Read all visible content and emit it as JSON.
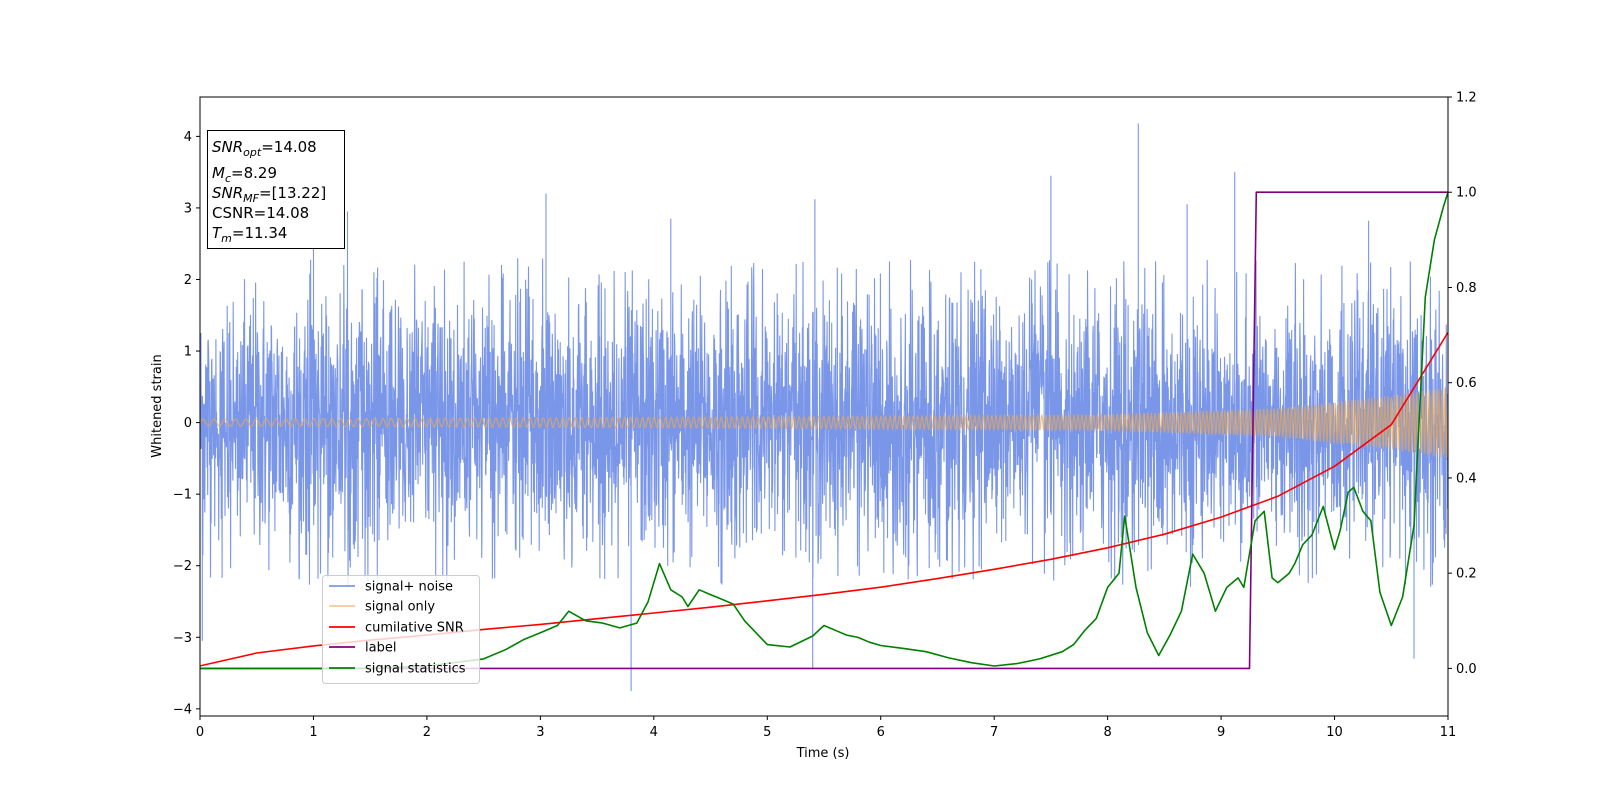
{
  "chart_data": {
    "type": "line",
    "xlabel": "Time (s)",
    "ylabel": "Whitened strain",
    "xlim": [
      0,
      11
    ],
    "ylim_left": [
      -4.1,
      4.55
    ],
    "ylim_right": [
      -0.1,
      1.2
    ],
    "x_ticks": [
      "0",
      "1",
      "2",
      "3",
      "4",
      "5",
      "6",
      "7",
      "8",
      "9",
      "10",
      "11"
    ],
    "y_ticks_left": [
      "−4",
      "−3",
      "−2",
      "−1",
      "0",
      "1",
      "2",
      "3",
      "4"
    ],
    "y_ticks_right": [
      "0.0",
      "0.2",
      "0.4",
      "0.6",
      "0.8",
      "1.0",
      "1.2"
    ],
    "grid": false,
    "legend_position": "lower-left",
    "series": [
      {
        "name": "signal+ noise",
        "color": "#6f8de6",
        "axis": "left",
        "envelope_abs": 2.3,
        "peaks": [
          {
            "x": 1.0,
            "y": 3.12
          },
          {
            "x": 1.3,
            "y": 2.95
          },
          {
            "x": 3.05,
            "y": 3.2
          },
          {
            "x": 3.8,
            "y": -3.75
          },
          {
            "x": 4.15,
            "y": 2.85
          },
          {
            "x": 5.42,
            "y": 3.12
          },
          {
            "x": 5.4,
            "y": -3.45
          },
          {
            "x": 7.5,
            "y": 3.45
          },
          {
            "x": 8.27,
            "y": 4.18
          },
          {
            "x": 8.7,
            "y": 3.05
          },
          {
            "x": 9.12,
            "y": 3.5
          },
          {
            "x": 10.7,
            "y": -3.3
          },
          {
            "x": 10.3,
            "y": 2.82
          },
          {
            "x": 0.02,
            "y": -3.05
          }
        ]
      },
      {
        "name": "signal only",
        "color": "#e6a75a",
        "axis": "left",
        "amplitude": [
          [
            0,
            0.05
          ],
          [
            5,
            0.08
          ],
          [
            8,
            0.11
          ],
          [
            9.5,
            0.2
          ],
          [
            10.5,
            0.38
          ],
          [
            11,
            0.5
          ]
        ]
      },
      {
        "name": "cumilative SNR",
        "color": "#ff0000",
        "axis": "left",
        "x": [
          0,
          0.5,
          1,
          1.5,
          2,
          2.5,
          3,
          3.5,
          4,
          4.5,
          5,
          5.5,
          6,
          6.5,
          7,
          7.5,
          8,
          8.5,
          9,
          9.5,
          10,
          10.5,
          11
        ],
        "y": [
          -3.4,
          -3.22,
          -3.12,
          -3.04,
          -2.97,
          -2.89,
          -2.82,
          -2.74,
          -2.66,
          -2.58,
          -2.49,
          -2.4,
          -2.3,
          -2.18,
          -2.05,
          -1.91,
          -1.75,
          -1.56,
          -1.32,
          -1.03,
          -0.61,
          -0.03,
          1.26
        ]
      },
      {
        "name": "label",
        "color": "#800080",
        "axis": "right",
        "x": [
          0,
          9.25,
          9.31,
          11
        ],
        "y": [
          0,
          0,
          1,
          1
        ]
      },
      {
        "name": "signal statistics",
        "color": "#008000",
        "axis": "right",
        "x": [
          0,
          0.5,
          1,
          1.5,
          2,
          2.5,
          2.7,
          2.85,
          3.0,
          3.15,
          3.25,
          3.4,
          3.55,
          3.7,
          3.85,
          3.95,
          4.05,
          4.15,
          4.25,
          4.3,
          4.4,
          4.5,
          4.6,
          4.7,
          4.8,
          5.0,
          5.2,
          5.4,
          5.5,
          5.6,
          5.7,
          5.8,
          5.9,
          6.0,
          6.2,
          6.4,
          6.6,
          6.8,
          7.0,
          7.2,
          7.4,
          7.6,
          7.7,
          7.8,
          7.9,
          8.0,
          8.1,
          8.15,
          8.25,
          8.35,
          8.45,
          8.55,
          8.65,
          8.75,
          8.85,
          8.95,
          9.05,
          9.15,
          9.2,
          9.3,
          9.38,
          9.45,
          9.5,
          9.6,
          9.65,
          9.72,
          9.8,
          9.9,
          10.0,
          10.05,
          10.12,
          10.17,
          10.25,
          10.32,
          10.4,
          10.5,
          10.6,
          10.7,
          10.8,
          10.88,
          10.96,
          11.0
        ],
        "y": [
          0,
          0.0,
          0.0,
          0.0,
          0.005,
          0.02,
          0.04,
          0.06,
          0.075,
          0.09,
          0.12,
          0.1,
          0.095,
          0.085,
          0.095,
          0.14,
          0.22,
          0.165,
          0.15,
          0.13,
          0.165,
          0.155,
          0.145,
          0.135,
          0.1,
          0.05,
          0.045,
          0.068,
          0.09,
          0.08,
          0.07,
          0.065,
          0.055,
          0.048,
          0.042,
          0.035,
          0.022,
          0.012,
          0.005,
          0.01,
          0.02,
          0.035,
          0.05,
          0.08,
          0.105,
          0.17,
          0.2,
          0.32,
          0.17,
          0.075,
          0.027,
          0.07,
          0.12,
          0.24,
          0.2,
          0.12,
          0.17,
          0.19,
          0.17,
          0.31,
          0.33,
          0.19,
          0.18,
          0.2,
          0.22,
          0.26,
          0.28,
          0.34,
          0.25,
          0.29,
          0.37,
          0.38,
          0.33,
          0.31,
          0.16,
          0.09,
          0.15,
          0.3,
          0.78,
          0.9,
          0.97,
          1.0
        ]
      }
    ],
    "annotations": [
      {
        "name": "snr-opt",
        "base": "SNR",
        "sub": "opt",
        "value": "=14.08"
      },
      {
        "name": "mc",
        "base": "M",
        "sub": "c",
        "value": "=8.29"
      },
      {
        "name": "snr-mf",
        "base": "SNR",
        "sub": "MF",
        "value": "=[13.22]"
      },
      {
        "name": "csnr",
        "base": "CSNR",
        "sub": "",
        "value": "=14.08"
      },
      {
        "name": "tm",
        "base": "T",
        "sub": "m",
        "value": "=11.34"
      }
    ]
  }
}
